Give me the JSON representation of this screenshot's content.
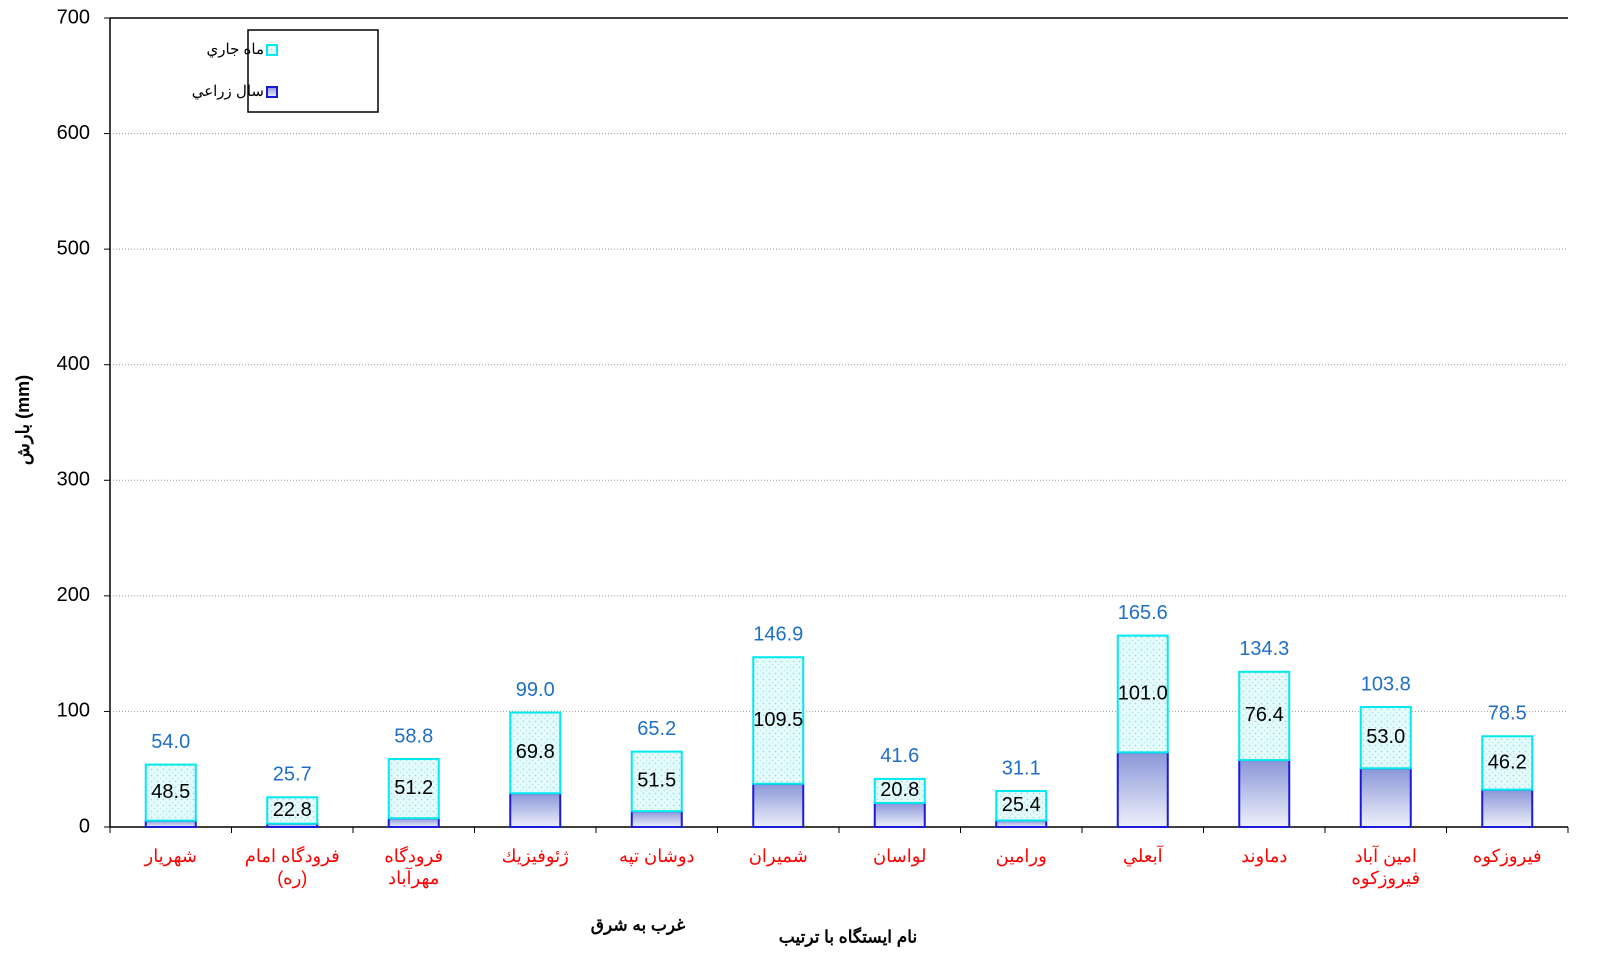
{
  "chart_data": {
    "type": "stacked_bar",
    "ylabel": "بارش  (mm)",
    "xlabel": "نام ايستگاه با ترتيب",
    "annotation": "غرب به شرق",
    "categories": [
      "شهريار",
      "فرودگاه امام\n(ره)",
      "فرودگاه\nمهرآباد",
      "ژئوفيزيك",
      "دوشان تپه",
      "شميران",
      "لواسان",
      "ورامين",
      "آبعلي",
      "دماوند",
      "امين آباد\nفيروزكوه",
      "فيروزكوه"
    ],
    "series": [
      {
        "name": "سال زراعي",
        "color": "#1c1cd8",
        "values": [
          5.5,
          2.9,
          7.6,
          29.2,
          13.7,
          37.4,
          20.8,
          5.7,
          64.6,
          57.9,
          50.8,
          32.3
        ]
      },
      {
        "name": "ماه جاري",
        "color": "#00e8f0",
        "values": [
          48.5,
          22.8,
          51.2,
          69.8,
          51.5,
          109.5,
          20.8,
          25.4,
          101.0,
          76.4,
          53.0,
          46.2
        ],
        "value_labels": [
          "48.5",
          "22.8",
          "51.2",
          "69.8",
          "51.5",
          "109.5",
          "20.8",
          "25.4",
          "101.0",
          "76.4",
          "53.0",
          "46.2"
        ]
      }
    ],
    "totals": [
      54.0,
      25.7,
      58.8,
      99.0,
      65.2,
      146.9,
      41.6,
      31.1,
      165.6,
      134.3,
      103.8,
      78.5
    ],
    "total_labels": [
      "54.0",
      "25.7",
      "58.8",
      "99.0",
      "65.2",
      "146.9",
      "41.6",
      "31.1",
      "165.6",
      "134.3",
      "103.8",
      "78.5"
    ],
    "ylim": [
      0,
      700
    ],
    "yticks": [
      0,
      100,
      200,
      300,
      400,
      500,
      600,
      700
    ],
    "grid": true,
    "legend": "upper left"
  }
}
